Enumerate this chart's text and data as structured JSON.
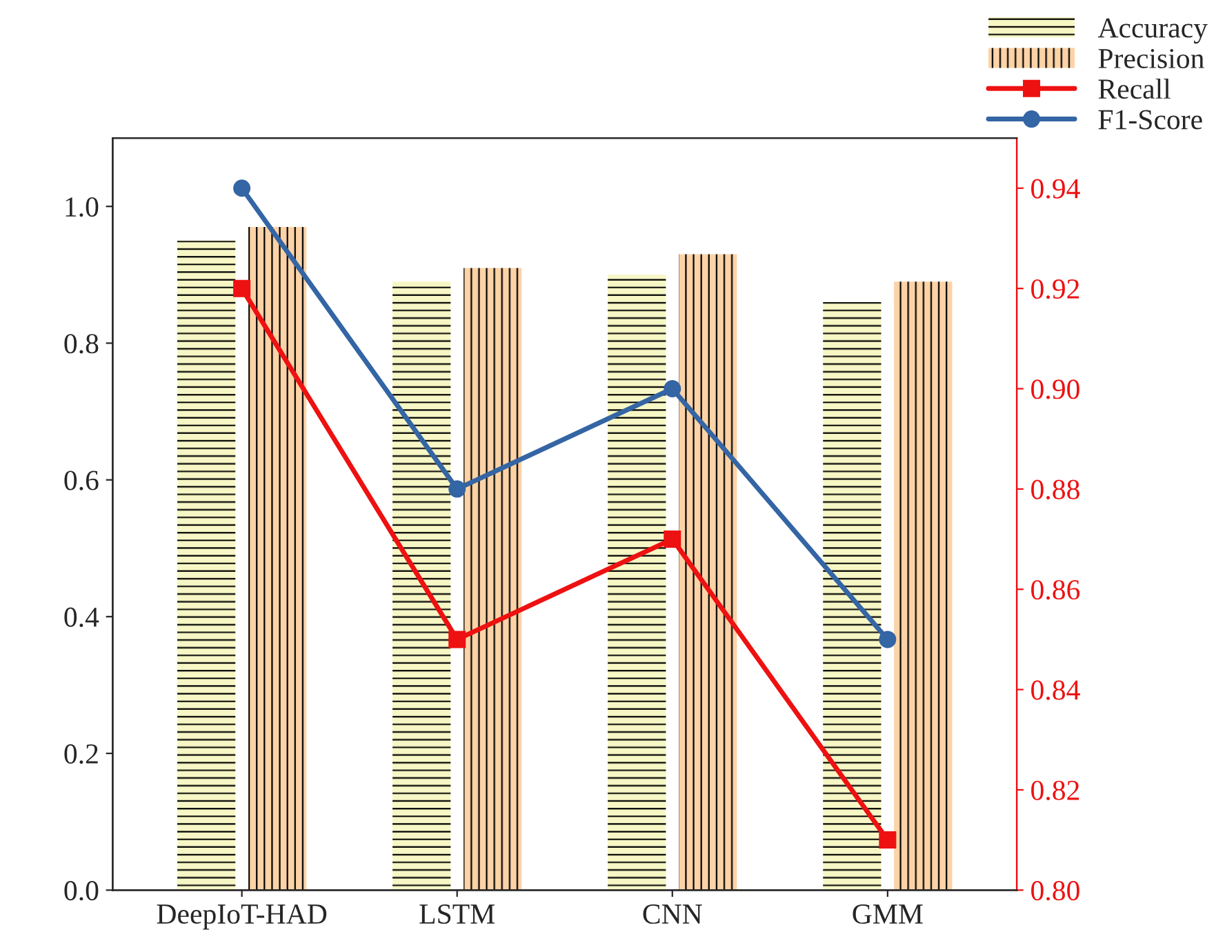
{
  "chart_data": {
    "type": "bar",
    "categories": [
      "DeepIoT-HAD",
      "LSTM",
      "CNN",
      "GMM"
    ],
    "series": [
      {
        "name": "Accuracy",
        "color": "#f7f7c6",
        "values": [
          0.95,
          0.89,
          0.9,
          0.86
        ]
      },
      {
        "name": "Precision",
        "color": "#fcd3a6",
        "values": [
          0.97,
          0.91,
          0.93,
          0.89
        ]
      },
      {
        "name": "Recall",
        "type": "line",
        "axis": "y2",
        "color": "#ee1111",
        "marker": "square",
        "values": [
          0.92,
          0.85,
          0.87,
          0.81
        ]
      },
      {
        "name": "F1-Score",
        "type": "line",
        "axis": "y2",
        "color": "#3465a4",
        "marker": "circle",
        "values": [
          0.94,
          0.88,
          0.9,
          0.85
        ]
      }
    ],
    "ylim": [
      0,
      1.1
    ],
    "yticks": [
      {
        "value": 0,
        "label": "0.0"
      },
      0.2,
      0.4,
      0.6,
      0.8,
      {
        "value": 1,
        "label": "1.0"
      }
    ],
    "y2lim": [
      0.8,
      0.95
    ],
    "y2ticks": [
      {
        "value": 0.8,
        "label": "0.80"
      },
      0.82,
      0.84,
      0.86,
      0.88,
      {
        "value": 0.9,
        "label": "0.90"
      },
      0.92,
      0.94
    ],
    "grid": false,
    "legend": "top right",
    "line_style": "solid"
  }
}
